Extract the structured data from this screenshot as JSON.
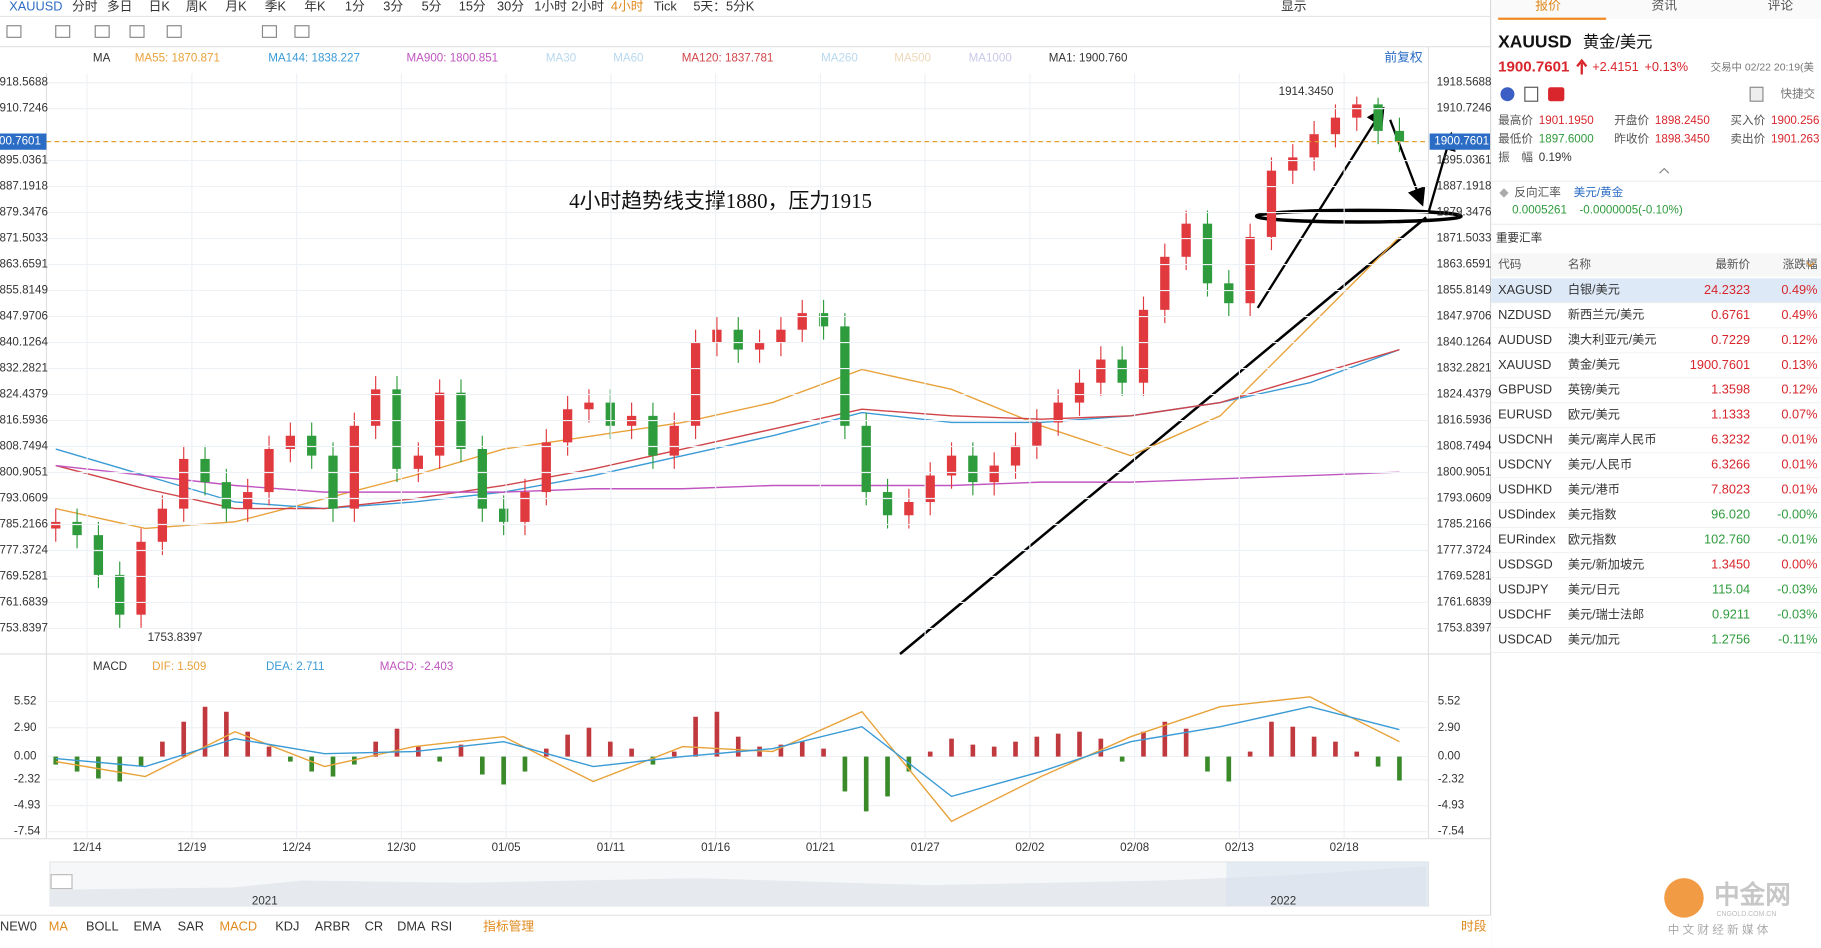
{
  "toolbar": {
    "symbol": "XAUUSD",
    "periods": [
      "分时",
      "多日",
      "日K",
      "周K",
      "月K",
      "季K",
      "年K",
      "1分",
      "3分",
      "5分",
      "15分",
      "30分",
      "1小时",
      "2小时",
      "4小时",
      "Tick",
      "5天：5分K"
    ],
    "active_period": "4小时",
    "display": "显示"
  },
  "chart_data": [
    {
      "type": "candlestick",
      "legend": [
        {
          "text": "MA",
          "color": "#333333"
        },
        {
          "text": "MA55: 1870.871",
          "color": "#e8a23a"
        },
        {
          "text": "MA144: 1838.227",
          "color": "#3a9bd5"
        },
        {
          "text": "MA900: 1800.851",
          "color": "#c055c0"
        },
        {
          "text": "MA30",
          "color": "#b8d8ee"
        },
        {
          "text": "MA60",
          "color": "#b8d8ee"
        },
        {
          "text": "MA120: 1837.781",
          "color": "#d0454a"
        },
        {
          "text": "MA260",
          "color": "#b8d8ee"
        },
        {
          "text": "MA500",
          "color": "#eed8b8"
        },
        {
          "text": "MA1000",
          "color": "#c8c8e8"
        },
        {
          "text": "MA1: 1900.760",
          "color": "#333333"
        }
      ],
      "adjust": "前复权",
      "annotation": "4小时趋势线支撑1880，压力1915",
      "high_label": "1914.3450",
      "low_label": "1753.8397",
      "last_label": "1900.7601",
      "x_labels": [
        "12/14",
        "12/19",
        "12/24",
        "12/30",
        "01/05",
        "01/11",
        "01/16",
        "01/21",
        "01/27",
        "02/02",
        "02/08",
        "02/13",
        "02/18"
      ],
      "ylim": [
        1746.13,
        1921.37
      ],
      "yticks": [
        1918.5688,
        1910.7246,
        1895.0361,
        1887.1918,
        1879.3476,
        1871.5033,
        1863.6591,
        1855.8149,
        1847.9706,
        1840.1264,
        1832.2821,
        1824.4379,
        1816.5936,
        1808.7494,
        1800.9051,
        1793.0609,
        1785.2166,
        1777.3724,
        1769.5281,
        1761.6839,
        1753.8397
      ],
      "up_color": "#e0393e",
      "down_color": "#2e9b3c",
      "open": [
        1784,
        1786,
        1782,
        1770,
        1758,
        1780,
        1790,
        1805,
        1798,
        1790,
        1795,
        1808,
        1812,
        1806,
        1790,
        1815,
        1826,
        1802,
        1806,
        1825,
        1808,
        1790,
        1786,
        1795,
        1810,
        1820,
        1822,
        1815,
        1818,
        1806,
        1815,
        1840,
        1844,
        1838,
        1840,
        1844,
        1849,
        1845,
        1815,
        1795,
        1788,
        1792,
        1800,
        1806,
        1798,
        1803,
        1809,
        1816,
        1822,
        1828,
        1835,
        1828,
        1850,
        1866,
        1876,
        1858,
        1852,
        1872,
        1892,
        1896,
        1903,
        1908,
        1912,
        1904
      ],
      "high": [
        1790,
        1790,
        1786,
        1774,
        1784,
        1794,
        1809,
        1809,
        1802,
        1799,
        1812,
        1816,
        1816,
        1810,
        1819,
        1830,
        1830,
        1810,
        1829,
        1829,
        1812,
        1794,
        1799,
        1814,
        1824,
        1826,
        1826,
        1822,
        1822,
        1819,
        1844,
        1848,
        1848,
        1844,
        1848,
        1853,
        1853,
        1849,
        1819,
        1799,
        1796,
        1804,
        1810,
        1810,
        1807,
        1813,
        1820,
        1826,
        1832,
        1839,
        1839,
        1854,
        1870,
        1880,
        1880,
        1862,
        1876,
        1896,
        1900,
        1907,
        1912,
        1914.345,
        1914,
        1908
      ],
      "low": [
        1780,
        1778,
        1766,
        1753.8397,
        1754,
        1776,
        1786,
        1794,
        1786,
        1786,
        1791,
        1804,
        1802,
        1786,
        1786,
        1811,
        1798,
        1798,
        1802,
        1804,
        1786,
        1782,
        1782,
        1791,
        1806,
        1816,
        1811,
        1811,
        1802,
        1802,
        1811,
        1836,
        1834,
        1834,
        1836,
        1840,
        1841,
        1811,
        1791,
        1784,
        1784,
        1788,
        1796,
        1794,
        1794,
        1799,
        1805,
        1812,
        1818,
        1824,
        1824,
        1824,
        1846,
        1862,
        1854,
        1848,
        1848,
        1868,
        1888,
        1892,
        1899,
        1904,
        1900,
        1897.6
      ],
      "close": [
        1786,
        1782,
        1770,
        1758,
        1780,
        1790,
        1805,
        1798,
        1790,
        1795,
        1808,
        1812,
        1806,
        1790,
        1815,
        1826,
        1802,
        1806,
        1825,
        1808,
        1790,
        1786,
        1795,
        1810,
        1820,
        1822,
        1815,
        1818,
        1806,
        1815,
        1840,
        1844,
        1838,
        1840,
        1844,
        1849,
        1845,
        1815,
        1795,
        1788,
        1792,
        1800,
        1806,
        1798,
        1803,
        1809,
        1816,
        1822,
        1828,
        1835,
        1828,
        1850,
        1866,
        1876,
        1858,
        1852,
        1872,
        1892,
        1896,
        1903,
        1908,
        1912,
        1904,
        1900.7601
      ],
      "ma_lines": [
        {
          "color": "#e8a23a",
          "values": [
            1790,
            1784,
            1786,
            1793,
            1800,
            1808,
            1812,
            1816,
            1822,
            1832,
            1826,
            1815,
            1806,
            1818,
            1845,
            1872
          ]
        },
        {
          "color": "#3a9bd5",
          "values": [
            1808,
            1800,
            1792,
            1790,
            1792,
            1795,
            1800,
            1806,
            1812,
            1819,
            1816,
            1816,
            1818,
            1822,
            1828,
            1838
          ]
        },
        {
          "color": "#d0454a",
          "values": [
            1803,
            1796,
            1790,
            1790,
            1793,
            1797,
            1802,
            1808,
            1814,
            1820,
            1818,
            1817,
            1818,
            1822,
            1830,
            1838
          ]
        },
        {
          "color": "#c055c0",
          "values": [
            1803,
            1800,
            1797,
            1795,
            1795,
            1795,
            1796,
            1796,
            1797,
            1797,
            1797,
            1798,
            1798,
            1799,
            1800,
            1801
          ]
        }
      ]
    },
    {
      "type": "macd",
      "title": "MACD",
      "legend": [
        {
          "text": "DIF: 1.509",
          "color": "#e8a23a"
        },
        {
          "text": "DEA: 2.711",
          "color": "#3a9bd5"
        },
        {
          "text": "MACD: -2.403",
          "color": "#c055c0"
        }
      ],
      "ylim": [
        -8.24,
        7.15
      ],
      "yticks": [
        5.52,
        {
          "value": 2.9,
          "label": "2.90"
        },
        {
          "value": 0,
          "label": "0.00"
        },
        -2.32,
        -4.93,
        -7.54
      ],
      "up_color": "#c0393e",
      "down_color": "#3a8a2a",
      "histogram": [
        -0.8,
        -1.5,
        -2.2,
        -2.5,
        -1.0,
        1.5,
        3.5,
        5.0,
        4.5,
        2.5,
        1.0,
        -0.5,
        -1.5,
        -2.0,
        -0.8,
        1.5,
        2.8,
        1.0,
        -0.5,
        1.2,
        -1.8,
        -2.8,
        -1.5,
        0.8,
        2.2,
        2.9,
        1.5,
        0.8,
        -0.8,
        0.5,
        4.0,
        4.5,
        2.0,
        1.0,
        1.2,
        1.5,
        0.8,
        -3.5,
        -5.5,
        -4.0,
        -1.5,
        0.5,
        1.8,
        1.2,
        1.0,
        1.5,
        2.0,
        2.3,
        2.5,
        1.8,
        -0.5,
        2.5,
        3.5,
        2.8,
        -1.5,
        -2.5,
        0.5,
        3.5,
        3.0,
        2.0,
        1.5,
        0.5,
        -1.0,
        -2.403
      ],
      "dif": [
        -0.5,
        -2.0,
        2.5,
        -1.0,
        1.0,
        2.0,
        -2.5,
        1.0,
        0.5,
        4.5,
        -6.5,
        -2.0,
        2.0,
        5.0,
        6.0,
        1.509
      ],
      "dea": [
        -0.2,
        -1.0,
        1.8,
        0.3,
        0.5,
        1.5,
        -1.0,
        0.0,
        0.8,
        3.0,
        -4.0,
        -1.5,
        1.5,
        3.0,
        5.0,
        2.711
      ]
    }
  ],
  "navigator": {
    "years": [
      "2021",
      "2022"
    ]
  },
  "indicator_tabs": {
    "items": [
      "NEW0",
      "MA",
      "BOLL",
      "EMA",
      "SAR",
      "MACD",
      "KDJ",
      "ARBR",
      "CR",
      "DMA",
      "RSI",
      "指标管理"
    ],
    "active": [
      "MA",
      "MACD",
      "指标管理"
    ],
    "session": "时段"
  },
  "quote_panel": {
    "tabs": [
      "报价",
      "资讯",
      "评论"
    ],
    "symbol": "XAUUSD",
    "name": "黄金/美元",
    "price": "1900.7601",
    "change": "+2.4151",
    "change_pct": "+0.13%",
    "status": "交易中 02/22 20:19(美",
    "shortcut": "快捷交",
    "stats": [
      [
        "最高价",
        "1901.1950"
      ],
      [
        "开盘价",
        "1898.2450"
      ],
      [
        "买入价",
        "1900.256"
      ],
      [
        "最低价",
        "1897.6000"
      ],
      [
        "昨收价",
        "1898.3450"
      ],
      [
        "卖出价",
        "1901.263"
      ],
      [
        "振　幅",
        "0.19%"
      ]
    ],
    "reverse": {
      "label": "反向汇率",
      "pair": "美元/黄金",
      "price": "0.0005261",
      "change": "-0.0000005(-0.10%)"
    },
    "section": "重要汇率",
    "table": {
      "header": [
        "代码",
        "名称",
        "最新价",
        "涨跌幅"
      ],
      "rows": [
        [
          "XAGUSD",
          "白银/美元",
          "24.2323",
          "0.49%"
        ],
        [
          "NZDUSD",
          "新西兰元/美元",
          "0.6761",
          "0.49%"
        ],
        [
          "AUDUSD",
          "澳大利亚元/美元",
          "0.7229",
          "0.12%"
        ],
        [
          "XAUUSD",
          "黄金/美元",
          "1900.7601",
          "0.13%"
        ],
        [
          "GBPUSD",
          "英镑/美元",
          "1.3598",
          "0.12%"
        ],
        [
          "EURUSD",
          "欧元/美元",
          "1.1333",
          "0.07%"
        ],
        [
          "USDCNH",
          "美元/离岸人民币",
          "6.3232",
          "0.01%"
        ],
        [
          "USDCNY",
          "美元/人民币",
          "6.3266",
          "0.01%"
        ],
        [
          "USDHKD",
          "美元/港币",
          "7.8023",
          "0.01%"
        ],
        [
          "USDindex",
          "美元指数",
          "96.020",
          "-0.00%"
        ],
        [
          "EURindex",
          "欧元指数",
          "102.760",
          "-0.01%"
        ],
        [
          "USDSGD",
          "美元/新加坡元",
          "1.3450",
          "0.00%"
        ],
        [
          "USDJPY",
          "美元/日元",
          "115.04",
          "-0.03%"
        ],
        [
          "USDCHF",
          "美元/瑞士法郎",
          "0.9211",
          "-0.03%"
        ],
        [
          "USDCAD",
          "美元/加元",
          "1.2756",
          "-0.11%"
        ]
      ]
    }
  },
  "watermark": {
    "brand": "中金网",
    "site": "CNGOLD.COM.CN",
    "slogan": "中 文 财 经 新 媒 体"
  }
}
